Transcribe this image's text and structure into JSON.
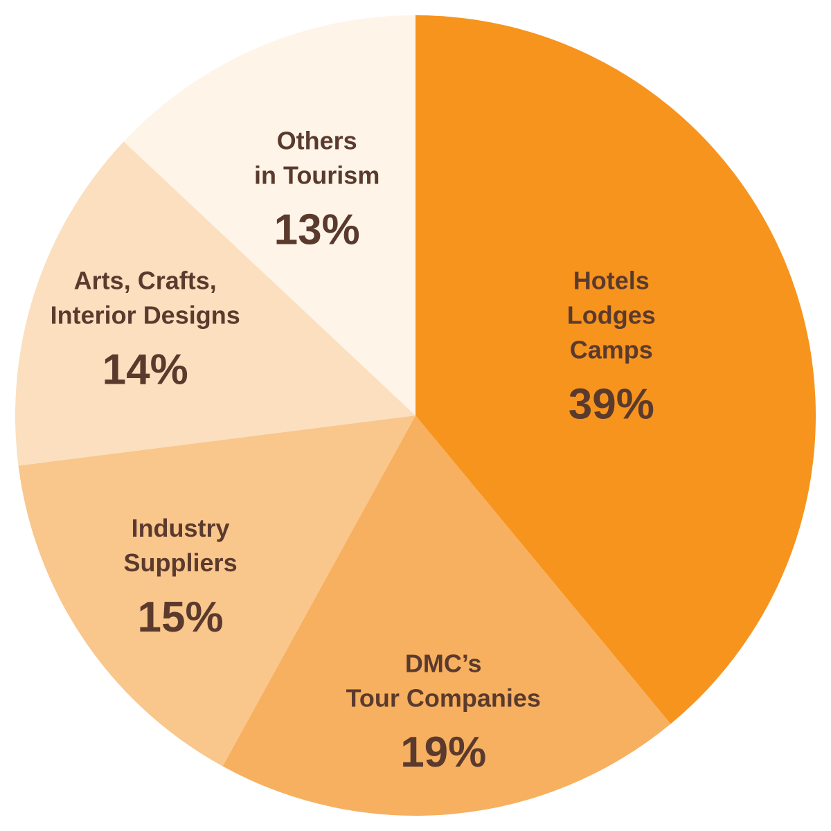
{
  "chart_data": {
    "type": "pie",
    "start_angle_deg": 0,
    "direction": "clockwise",
    "slices": [
      {
        "label_lines": [
          "Hotels",
          "Lodges",
          "Camps"
        ],
        "value": 39,
        "value_label": "39%",
        "color": "#f7941d"
      },
      {
        "label_lines": [
          "DMC’s",
          "Tour Companies"
        ],
        "value": 19,
        "value_label": "19%",
        "color": "#f7b05f"
      },
      {
        "label_lines": [
          "Industry",
          "Suppliers"
        ],
        "value": 15,
        "value_label": "15%",
        "color": "#f9c68c"
      },
      {
        "label_lines": [
          "Arts, Crafts,",
          "Interior Designs"
        ],
        "value": 14,
        "value_label": "14%",
        "color": "#fbdfbe"
      },
      {
        "label_lines": [
          "Others",
          "in Tourism"
        ],
        "value": 13,
        "value_label": "13%",
        "color": "#fef4e8"
      }
    ]
  },
  "colors": {
    "text": "#5b3a2e",
    "background": "#ffffff"
  }
}
